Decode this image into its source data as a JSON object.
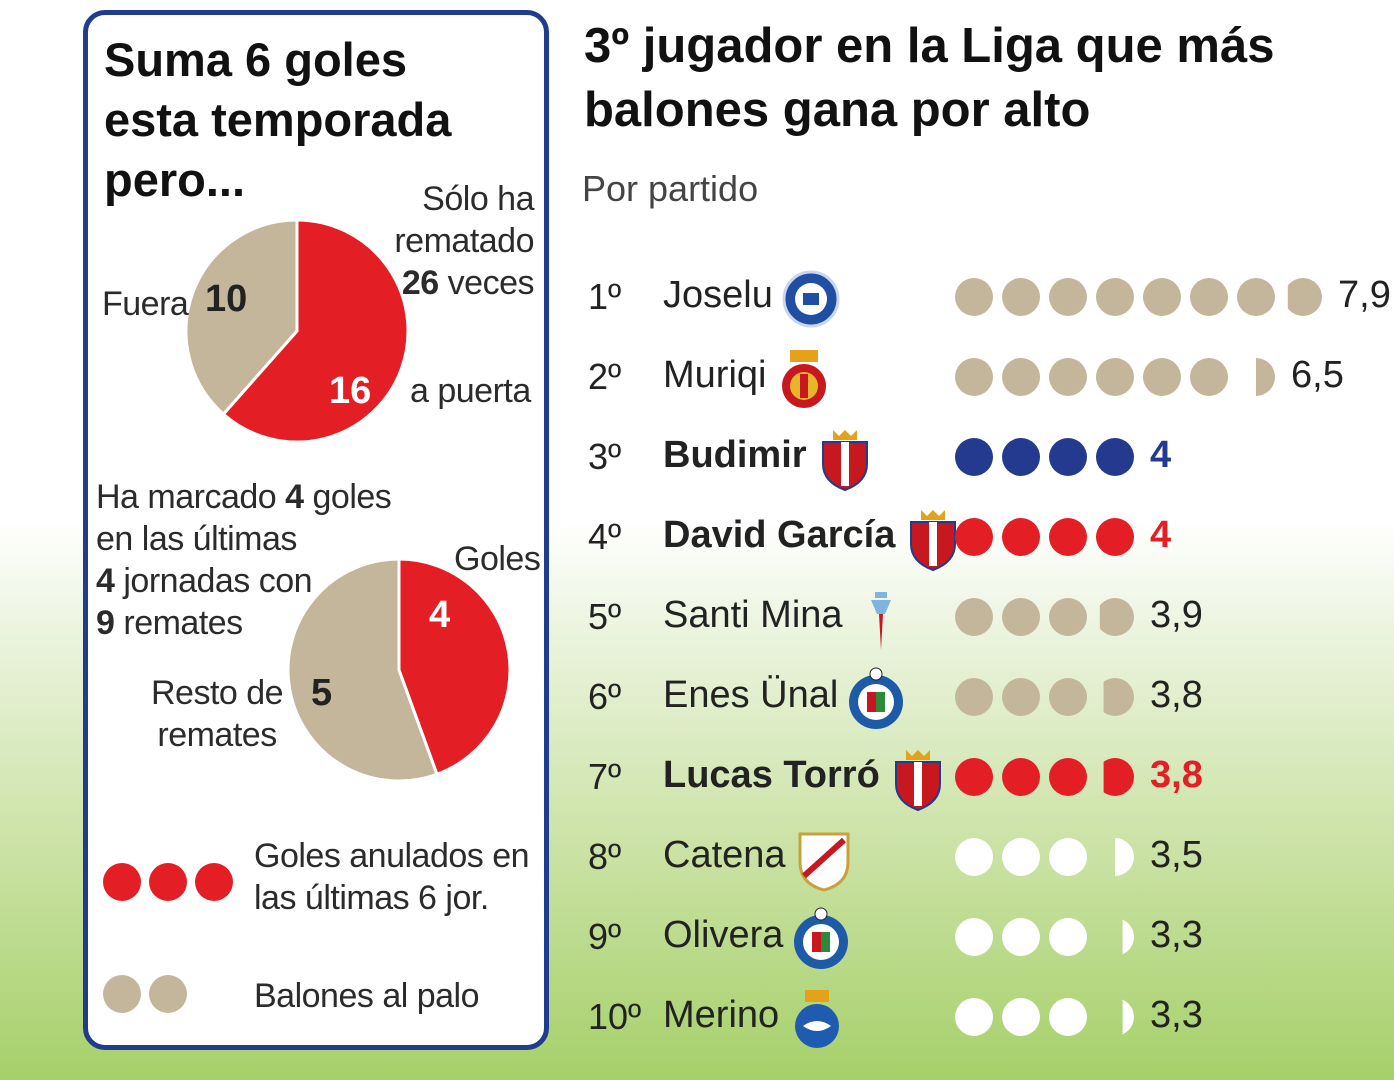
{
  "left_panel": {
    "title_lines": [
      "Suma 6 goles",
      "esta temporada",
      "pero..."
    ],
    "shots_text": [
      "Sólo ha",
      "rematado",
      "26",
      "veces"
    ],
    "pie1": {
      "fuera_label": "Fuera",
      "fuera_value": "10",
      "puerta_value": "16",
      "puerta_label": "a puerta"
    },
    "recent_text": {
      "l1_a": "Ha marcado ",
      "l1_b": "4",
      "l1_c": " goles",
      "l2": "en las últimas",
      "l3_a": "4",
      "l3_b": " jornadas con",
      "l4_a": "9",
      "l4_b": " remates"
    },
    "pie2": {
      "goles_label": "Goles",
      "goles_value": "4",
      "resto_label_1": "Resto de",
      "resto_label_2": "remates",
      "resto_value": "5"
    },
    "legend": [
      {
        "label_1": "Goles anulados en",
        "label_2": "las últimas 6 jor.",
        "count": 3,
        "color": "#e31e24"
      },
      {
        "label_1": "Balones al palo",
        "label_2": "",
        "count": 2,
        "color": "#c4b69b"
      }
    ]
  },
  "right_panel": {
    "title_lines": [
      "3º jugador en la Liga que más",
      "balones gana por alto"
    ],
    "subtitle": "Por partido"
  },
  "colors": {
    "red": "#e31e24",
    "tan": "#c4b69b",
    "navy": "#243a8f",
    "white": "#ffffff",
    "border": "#1f3c8f"
  },
  "chart_data": [
    {
      "type": "pie",
      "title": "",
      "slices": [
        {
          "label": "a puerta",
          "value": 16,
          "color": "#e31e24"
        },
        {
          "label": "Fuera",
          "value": 10,
          "color": "#c4b69b"
        }
      ]
    },
    {
      "type": "pie",
      "title": "",
      "slices": [
        {
          "label": "Goles",
          "value": 4,
          "color": "#e31e24"
        },
        {
          "label": "Resto de remates",
          "value": 5,
          "color": "#c4b69b"
        }
      ]
    },
    {
      "type": "bar",
      "title": "3º jugador en la Liga que más balones gana por alto",
      "subtitle": "Por partido",
      "categories": [
        "Joselu",
        "Muriqi",
        "Budimir",
        "David García",
        "Santi Mina",
        "Enes Ünal",
        "Lucas Torró",
        "Catena",
        "Olivera",
        "Merino"
      ],
      "ranks": [
        "1º",
        "2º",
        "3º",
        "4º",
        "5º",
        "6º",
        "7º",
        "8º",
        "9º",
        "10º"
      ],
      "values": [
        7.9,
        6.5,
        4,
        4,
        3.9,
        3.8,
        3.8,
        3.5,
        3.3,
        3.3
      ],
      "value_labels": [
        "7,9",
        "6,5",
        "4",
        "4",
        "3,9",
        "3,8",
        "3,8",
        "3,5",
        "3,3",
        "3,3"
      ],
      "crests": [
        "alaves-crest-icon",
        "mallorca-crest-icon",
        "osasuna-crest-icon",
        "osasuna-crest-icon",
        "celta-crest-icon",
        "getafe-crest-icon",
        "osasuna-crest-icon",
        "rayo-crest-icon",
        "getafe-crest-icon",
        "real-sociedad-crest-icon"
      ],
      "dot_colors": [
        "#c4b69b",
        "#c4b69b",
        "#243a8f",
        "#e31e24",
        "#c4b69b",
        "#c4b69b",
        "#e31e24",
        "#ffffff",
        "#ffffff",
        "#ffffff"
      ],
      "value_colors": [
        "#222222",
        "#222222",
        "#243a8f",
        "#e31e24",
        "#222222",
        "#222222",
        "#e31e24",
        "#222222",
        "#222222",
        "#222222"
      ],
      "highlight": [
        false,
        false,
        true,
        true,
        false,
        false,
        true,
        false,
        false,
        false
      ]
    }
  ]
}
